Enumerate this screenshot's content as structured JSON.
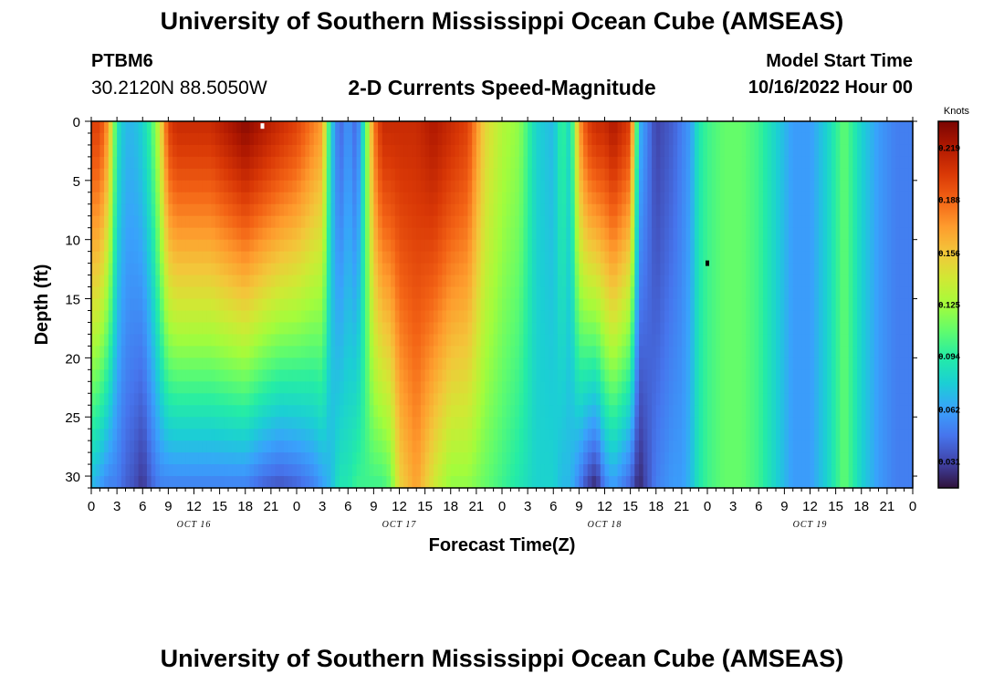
{
  "header": {
    "title": "University of Southern Mississippi Ocean Cube (AMSEAS)",
    "station": "PTBM6",
    "coords": "30.2120N  88.5050W",
    "subtitle": "2-D Currents Speed-Magnitude",
    "start_label": "Model Start Time",
    "start_value": "10/16/2022 Hour 00"
  },
  "footer": {
    "title": "University of Southern Mississippi Ocean Cube (AMSEAS)"
  },
  "colors": {
    "colormap": [
      "#30123b",
      "#4145ab",
      "#4675ed",
      "#39a2fc",
      "#1bcfd4",
      "#24eca6",
      "#61fc6c",
      "#a4fc3b",
      "#d1e834",
      "#f3c63a",
      "#fe9b2d",
      "#f36315",
      "#d93806",
      "#b11901",
      "#7a0402"
    ]
  },
  "chart_data": {
    "type": "heatmap",
    "xlabel": "Forecast Time(Z)",
    "ylabel": "Depth (ft)",
    "x_range": [
      0,
      96
    ],
    "y_range": [
      0,
      31
    ],
    "x_ticks": [
      0,
      3,
      6,
      9,
      12,
      15,
      18,
      21,
      24,
      27,
      30,
      33,
      36,
      39,
      42,
      45,
      48,
      51,
      54,
      57,
      60,
      63,
      66,
      69,
      72,
      75,
      78,
      81,
      84,
      87,
      90,
      93,
      96
    ],
    "x_tick_labels": [
      "0",
      "3",
      "6",
      "9",
      "12",
      "15",
      "18",
      "21",
      "0",
      "3",
      "6",
      "9",
      "12",
      "15",
      "18",
      "21",
      "0",
      "3",
      "6",
      "9",
      "12",
      "15",
      "18",
      "21",
      "0",
      "3",
      "6",
      "9",
      "12",
      "15",
      "18",
      "21",
      "0"
    ],
    "day_labels": [
      {
        "x": 12,
        "label": "OCT 16"
      },
      {
        "x": 36,
        "label": "OCT 17"
      },
      {
        "x": 60,
        "label": "OCT 18"
      },
      {
        "x": 84,
        "label": "OCT 19"
      }
    ],
    "y_ticks": [
      0,
      5,
      10,
      15,
      20,
      25,
      30
    ],
    "y_tick_labels": [
      "0",
      "5",
      "10",
      "15",
      "20",
      "25",
      "30"
    ],
    "colorbar": {
      "unit": "Knots",
      "range": [
        0.015,
        0.235
      ],
      "ticks": [
        0.031,
        0.062,
        0.094,
        0.125,
        0.156,
        0.188,
        0.219
      ],
      "tick_labels": [
        "0.031",
        "0.062",
        "0.094",
        "0.125",
        "0.156",
        "0.188",
        "0.219"
      ]
    },
    "speed_profile_hours": [
      0,
      1,
      2,
      3,
      4,
      5,
      6,
      7,
      8,
      9,
      10,
      11,
      12,
      14,
      16,
      18,
      20,
      22,
      24,
      26,
      27,
      28,
      29,
      30,
      31,
      32,
      33,
      34,
      35,
      36,
      38,
      40,
      42,
      44,
      46,
      48,
      50,
      52,
      54,
      55,
      56,
      57,
      58,
      59,
      60,
      61,
      62,
      63,
      64,
      66,
      68,
      69,
      70,
      71,
      72,
      74,
      76,
      78,
      80,
      82,
      84,
      86,
      88,
      90,
      92,
      94,
      96
    ],
    "speed_surface_knots": [
      0.2,
      0.2,
      0.17,
      0.09,
      0.07,
      0.07,
      0.08,
      0.1,
      0.14,
      0.2,
      0.21,
      0.21,
      0.21,
      0.21,
      0.22,
      0.23,
      0.22,
      0.21,
      0.2,
      0.18,
      0.17,
      0.08,
      0.04,
      0.06,
      0.04,
      0.1,
      0.18,
      0.21,
      0.21,
      0.21,
      0.21,
      0.22,
      0.21,
      0.2,
      0.15,
      0.13,
      0.12,
      0.08,
      0.07,
      0.1,
      0.08,
      0.17,
      0.2,
      0.21,
      0.21,
      0.22,
      0.21,
      0.2,
      0.07,
      0.03,
      0.04,
      0.05,
      0.06,
      0.09,
      0.1,
      0.11,
      0.11,
      0.1,
      0.08,
      0.06,
      0.06,
      0.08,
      0.11,
      0.08,
      0.06,
      0.05,
      0.05
    ],
    "speed_bottom_knots": [
      0.07,
      0.06,
      0.05,
      0.05,
      0.04,
      0.035,
      0.025,
      0.04,
      0.05,
      0.05,
      0.05,
      0.05,
      0.05,
      0.05,
      0.05,
      0.05,
      0.04,
      0.035,
      0.04,
      0.05,
      0.06,
      0.07,
      0.09,
      0.09,
      0.1,
      0.1,
      0.1,
      0.1,
      0.11,
      0.15,
      0.17,
      0.14,
      0.12,
      0.12,
      0.11,
      0.1,
      0.09,
      0.08,
      0.08,
      0.07,
      0.07,
      0.05,
      0.03,
      0.02,
      0.05,
      0.06,
      0.05,
      0.04,
      0.02,
      0.05,
      0.06,
      0.06,
      0.07,
      0.09,
      0.1,
      0.11,
      0.11,
      0.1,
      0.08,
      0.06,
      0.06,
      0.08,
      0.11,
      0.08,
      0.06,
      0.05,
      0.05
    ],
    "markers": [
      {
        "x": 20,
        "y": 0.4,
        "color": "#ffffff"
      },
      {
        "x": 72,
        "y": 12.0,
        "color": "#000000"
      }
    ]
  }
}
